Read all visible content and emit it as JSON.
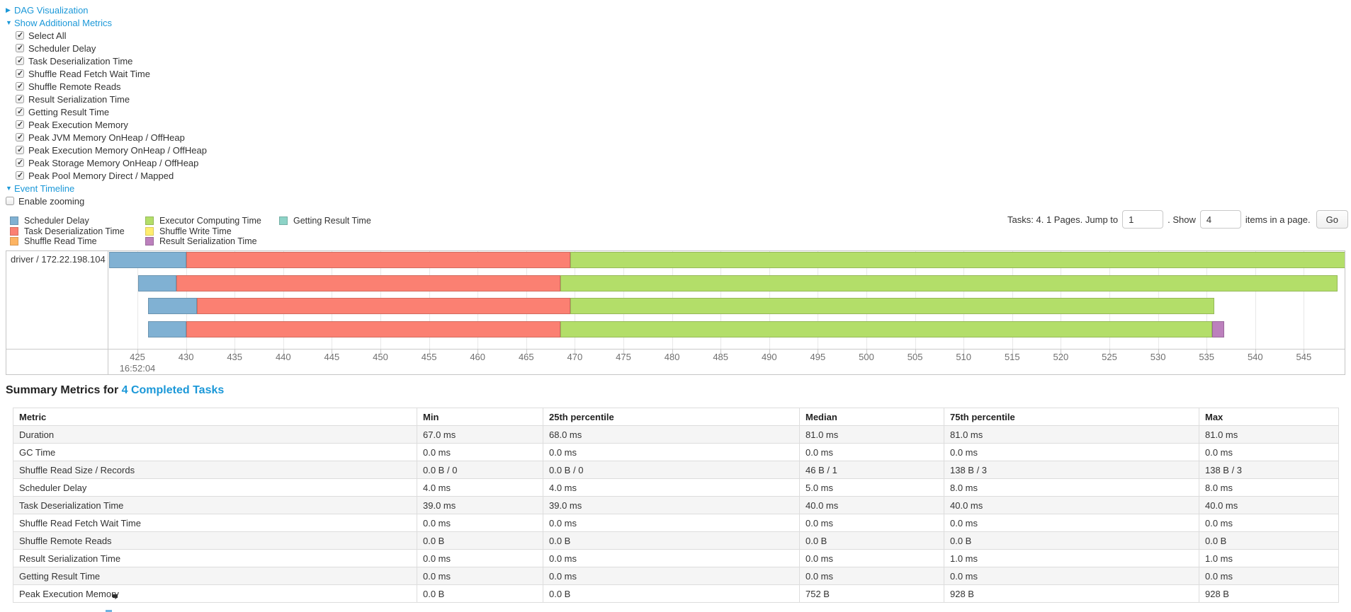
{
  "controls": {
    "dag_link": "DAG Visualization",
    "metrics_link": "Show Additional Metrics",
    "timeline_link": "Event Timeline",
    "checkboxes": [
      {
        "label": "Select All",
        "checked": true
      },
      {
        "label": "Scheduler Delay",
        "checked": true
      },
      {
        "label": "Task Deserialization Time",
        "checked": true
      },
      {
        "label": "Shuffle Read Fetch Wait Time",
        "checked": true
      },
      {
        "label": "Shuffle Remote Reads",
        "checked": true
      },
      {
        "label": "Result Serialization Time",
        "checked": true
      },
      {
        "label": "Getting Result Time",
        "checked": true
      },
      {
        "label": "Peak Execution Memory",
        "checked": true
      },
      {
        "label": "Peak JVM Memory OnHeap / OffHeap",
        "checked": true
      },
      {
        "label": "Peak Execution Memory OnHeap / OffHeap",
        "checked": true
      },
      {
        "label": "Peak Storage Memory OnHeap / OffHeap",
        "checked": true
      },
      {
        "label": "Peak Pool Memory Direct / Mapped",
        "checked": true
      }
    ],
    "enable_zooming": {
      "label": "Enable zooming",
      "checked": false
    }
  },
  "pagination": {
    "tasks_label": "Tasks: 4. 1 Pages. Jump to",
    "jump_value": "1",
    "show_label": ". Show",
    "show_value": "4",
    "items_label": "items in a page.",
    "go_label": "Go"
  },
  "chart_data": {
    "type": "timeline",
    "group": "driver / 172.22.198.104",
    "x_axis": {
      "start": 425,
      "end": 550,
      "step": 5,
      "time_label": "16:52:04",
      "unit": "ms within 16:52:04"
    },
    "legend": [
      {
        "key": "scheduler-delay",
        "label": "Scheduler Delay",
        "fill": "#80B1D3",
        "stroke": "#6B94B0",
        "col": 0
      },
      {
        "key": "task-deserialization",
        "label": "Task Deserialization Time",
        "fill": "#FB8072",
        "stroke": "#D26B5F",
        "col": 0
      },
      {
        "key": "shuffle-read",
        "label": "Shuffle Read Time",
        "fill": "#FDB462",
        "stroke": "#D89952",
        "col": 0
      },
      {
        "key": "executor-computing",
        "label": "Executor Computing Time",
        "fill": "#B3DE69",
        "stroke": "#95B958",
        "col": 1
      },
      {
        "key": "shuffle-write",
        "label": "Shuffle Write Time",
        "fill": "#FFED6F",
        "stroke": "#D9CA5E",
        "col": 1
      },
      {
        "key": "result-serialization",
        "label": "Result Serialization Time",
        "fill": "#BC80BD",
        "stroke": "#9A699B",
        "col": 1
      },
      {
        "key": "getting-result",
        "label": "Getting Result Time",
        "fill": "#8DD3C7",
        "stroke": "#75AFA5",
        "col": 2
      }
    ],
    "tasks": [
      {
        "segments": [
          {
            "metric": "scheduler-delay",
            "start": 422.1,
            "end": 430.0
          },
          {
            "metric": "task-deserialization",
            "start": 430.0,
            "end": 469.5
          },
          {
            "metric": "executor-computing",
            "start": 469.5,
            "end": 549.6
          }
        ]
      },
      {
        "segments": [
          {
            "metric": "scheduler-delay",
            "start": 425.1,
            "end": 429.0
          },
          {
            "metric": "task-deserialization",
            "start": 429.0,
            "end": 468.5
          },
          {
            "metric": "executor-computing",
            "start": 468.5,
            "end": 548.5
          }
        ]
      },
      {
        "segments": [
          {
            "metric": "scheduler-delay",
            "start": 426.1,
            "end": 431.1
          },
          {
            "metric": "task-deserialization",
            "start": 431.1,
            "end": 469.5
          },
          {
            "metric": "executor-computing",
            "start": 469.5,
            "end": 535.8
          }
        ]
      },
      {
        "segments": [
          {
            "metric": "scheduler-delay",
            "start": 426.1,
            "end": 430.0
          },
          {
            "metric": "task-deserialization",
            "start": 430.0,
            "end": 468.5
          },
          {
            "metric": "executor-computing",
            "start": 468.5,
            "end": 535.6
          },
          {
            "metric": "result-serialization",
            "start": 535.6,
            "end": 536.8
          }
        ]
      }
    ]
  },
  "summary": {
    "title": "Summary Metrics for",
    "title_link": "4 Completed Tasks",
    "columns": [
      "Metric",
      "Min",
      "25th percentile",
      "Median",
      "75th percentile",
      "Max"
    ],
    "rows": [
      {
        "metric": "Duration",
        "values": [
          "67.0 ms",
          "68.0 ms",
          "81.0 ms",
          "81.0 ms",
          "81.0 ms"
        ]
      },
      {
        "metric": "GC Time",
        "values": [
          "0.0 ms",
          "0.0 ms",
          "0.0 ms",
          "0.0 ms",
          "0.0 ms"
        ]
      },
      {
        "metric": "Shuffle Read Size / Records",
        "values": [
          "0.0 B / 0",
          "0.0 B / 0",
          "46 B / 1",
          "138 B / 3",
          "138 B / 3"
        ]
      },
      {
        "metric": "Scheduler Delay",
        "values": [
          "4.0 ms",
          "4.0 ms",
          "5.0 ms",
          "8.0 ms",
          "8.0 ms"
        ]
      },
      {
        "metric": "Task Deserialization Time",
        "values": [
          "39.0 ms",
          "39.0 ms",
          "40.0 ms",
          "40.0 ms",
          "40.0 ms"
        ]
      },
      {
        "metric": "Shuffle Read Fetch Wait Time",
        "values": [
          "0.0 ms",
          "0.0 ms",
          "0.0 ms",
          "0.0 ms",
          "0.0 ms"
        ]
      },
      {
        "metric": "Shuffle Remote Reads",
        "values": [
          "0.0 B",
          "0.0 B",
          "0.0 B",
          "0.0 B",
          "0.0 B"
        ]
      },
      {
        "metric": "Result Serialization Time",
        "values": [
          "0.0 ms",
          "0.0 ms",
          "0.0 ms",
          "1.0 ms",
          "1.0 ms"
        ]
      },
      {
        "metric": "Getting Result Time",
        "values": [
          "0.0 ms",
          "0.0 ms",
          "0.0 ms",
          "0.0 ms",
          "0.0 ms"
        ]
      },
      {
        "metric": "Peak Execution Memory",
        "values": [
          "0.0 B",
          "0.0 B",
          "752 B",
          "928 B",
          "928 B"
        ]
      }
    ]
  }
}
